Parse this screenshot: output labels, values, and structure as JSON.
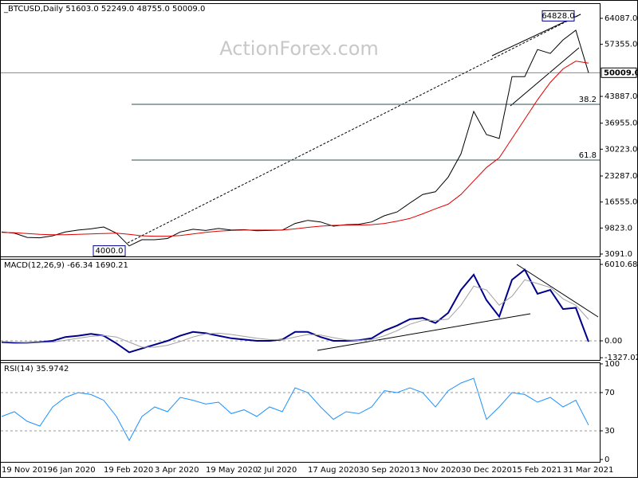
{
  "chart_data": [
    {
      "type": "line",
      "title": "_BTCUSD,Daily  51603.0 52249.0 48755.0 50009.0",
      "watermark": "ActionForex.com",
      "ylim": [
        2473,
        67796
      ],
      "yticks": [
        {
          "value": 64087,
          "label": "64087.0"
        },
        {
          "value": 57355,
          "label": "57355.0"
        },
        {
          "value": 43887,
          "label": "43887.0"
        },
        {
          "value": 36955,
          "label": "36955.0"
        },
        {
          "value": 30223,
          "label": "30223.0"
        },
        {
          "value": 23287,
          "label": "23287.0"
        },
        {
          "value": 16555,
          "label": "16555.0"
        },
        {
          "value": 9823,
          "label": "9823.0"
        },
        {
          "value": 3091,
          "label": "3091.0"
        }
      ],
      "last_price": {
        "value": 50009,
        "label": "50009.0"
      },
      "fib_levels": [
        {
          "value": 41819,
          "label": "38.2"
        },
        {
          "value": 27400,
          "label": "61.8"
        }
      ],
      "annotations": [
        {
          "value": 4000,
          "label": "4000.0"
        },
        {
          "value": 64828,
          "label": "64828.0"
        }
      ],
      "series": [
        {
          "name": "BTCUSD",
          "color": "#000000",
          "values": [
            8800,
            8500,
            7400,
            7300,
            7800,
            8800,
            9300,
            9600,
            10100,
            8500,
            5200,
            6800,
            6800,
            7100,
            8800,
            9500,
            9200,
            9700,
            9300,
            9400,
            9100,
            9200,
            9300,
            11000,
            11800,
            11400,
            10300,
            10700,
            10800,
            11400,
            13000,
            14000,
            16300,
            18500,
            19200,
            23000,
            29000,
            40000,
            34000,
            33000,
            49000,
            49000,
            56000,
            55000,
            58500,
            61000,
            50009
          ]
        },
        {
          "name": "MA",
          "color": "#e00000",
          "values": [
            8700,
            8600,
            8400,
            8200,
            8100,
            8100,
            8200,
            8300,
            8400,
            8500,
            8200,
            7800,
            7700,
            7700,
            7900,
            8300,
            8700,
            9000,
            9200,
            9300,
            9300,
            9300,
            9300,
            9600,
            10000,
            10300,
            10500,
            10600,
            10600,
            10700,
            11000,
            11600,
            12300,
            13500,
            14800,
            16000,
            18500,
            22000,
            25500,
            28000,
            33000,
            38000,
            43000,
            47500,
            51000,
            53000,
            52500
          ]
        }
      ]
    },
    {
      "type": "line",
      "title": "MACD(12,26,9) -66.34 1690.21",
      "ylim": [
        -1503,
        6386
      ],
      "yticks": [
        6010.68,
        {
          "value": 0,
          "label": "0.00"
        },
        -1327.02
      ],
      "hlines": [
        0
      ],
      "series": [
        {
          "name": "MACD",
          "color": "#00008b",
          "values": [
            -100,
            -150,
            -150,
            -100,
            0,
            300,
            400,
            550,
            400,
            -200,
            -900,
            -600,
            -300,
            0,
            400,
            700,
            600,
            400,
            200,
            100,
            0,
            0,
            100,
            700,
            700,
            300,
            0,
            0,
            50,
            200,
            800,
            1200,
            1700,
            1800,
            1400,
            2200,
            4000,
            5200,
            3200,
            1900,
            4800,
            5600,
            3700,
            4000,
            2500,
            2600,
            -66.34
          ]
        },
        {
          "name": "Signal",
          "color": "#a0a0a0",
          "values": [
            -50,
            -100,
            -130,
            -130,
            -100,
            50,
            200,
            350,
            420,
            300,
            -100,
            -500,
            -500,
            -350,
            -50,
            300,
            550,
            600,
            500,
            350,
            200,
            100,
            80,
            300,
            500,
            450,
            250,
            80,
            30,
            100,
            400,
            800,
            1300,
            1600,
            1600,
            1700,
            2800,
            4300,
            4000,
            2800,
            3500,
            4800,
            4500,
            4200,
            3300,
            2800,
            1690.21
          ]
        }
      ]
    },
    {
      "type": "line",
      "title": "RSI(14) 35.9742",
      "ylim": [
        -2.5,
        100.8
      ],
      "yticks": [
        100,
        70,
        30,
        0
      ],
      "hlines": [
        70,
        30
      ],
      "categories": [
        "19 Nov 2019",
        null,
        null,
        null,
        "6 Jan 2020",
        null,
        null,
        null,
        "19 Feb 2020",
        null,
        null,
        null,
        "3 Apr 2020",
        null,
        null,
        null,
        "19 May 2020",
        null,
        null,
        null,
        "2 Jul 2020",
        null,
        null,
        null,
        "17 Aug 2020",
        null,
        null,
        null,
        "30 Sep 2020",
        null,
        null,
        null,
        "13 Nov 2020",
        null,
        null,
        null,
        "30 Dec 2020",
        null,
        null,
        null,
        "15 Feb 2021",
        null,
        null,
        null,
        "31 Mar 2021",
        null,
        null
      ],
      "series": [
        {
          "name": "RSI",
          "color": "#1e90ff",
          "values": [
            45,
            50,
            40,
            35,
            55,
            65,
            70,
            68,
            62,
            45,
            20,
            45,
            55,
            50,
            65,
            62,
            58,
            60,
            48,
            52,
            45,
            55,
            50,
            75,
            70,
            55,
            42,
            50,
            48,
            55,
            72,
            70,
            75,
            70,
            55,
            72,
            80,
            85,
            42,
            55,
            70,
            68,
            60,
            65,
            55,
            62,
            35.9742
          ]
        }
      ]
    }
  ]
}
